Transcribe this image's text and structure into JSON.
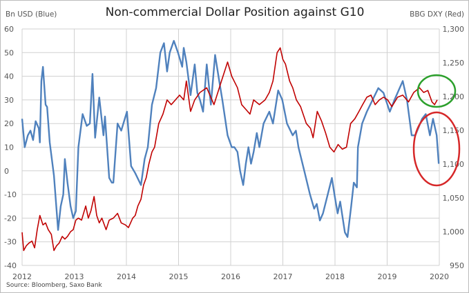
{
  "chart_data": {
    "type": "line",
    "title": "Non-commercial Dollar Position against G10",
    "ylabel_left": "Bn USD (Blue)",
    "ylabel_right": "BBG DXY (Red)",
    "source": "Source: Bloomberg, Saxo Bank",
    "xlim": [
      2012,
      2020
    ],
    "ylim_left": [
      -40,
      60
    ],
    "ylim_right": [
      950,
      1300
    ],
    "grid": true,
    "x_ticks": [
      "2012",
      "2013",
      "2014",
      "2015",
      "2016",
      "2017",
      "2018",
      "2019",
      "2020"
    ],
    "y_left_ticks": [
      "60",
      "50",
      "40",
      "30",
      "20",
      "10",
      "0",
      "-10",
      "-20",
      "-30",
      "-40"
    ],
    "y_right_ticks": [
      "1,300",
      "1,250",
      "1,200",
      "1,150",
      "1,100",
      "1,050",
      "1,000",
      "950"
    ],
    "annotations": [
      {
        "type": "circle",
        "color": "#2ca02c",
        "target": "BBG DXY, late 2019"
      },
      {
        "type": "circle",
        "color": "#d62728",
        "target": "Bn USD position, late 2019"
      }
    ],
    "series": [
      {
        "name": "Bn USD (Blue)",
        "axis": "left",
        "color": "#4f81bd",
        "x": [
          2012,
          2012.05,
          2012.11,
          2012.16,
          2012.21,
          2012.26,
          2012.32,
          2012.34,
          2012.37,
          2012.4,
          2012.45,
          2012.48,
          2012.53,
          2012.61,
          2012.69,
          2012.74,
          2012.79,
          2012.82,
          2012.87,
          2012.93,
          2012.98,
          2013.03,
          2013.08,
          2013.16,
          2013.24,
          2013.3,
          2013.35,
          2013.4,
          2013.48,
          2013.56,
          2013.59,
          2013.67,
          2013.72,
          2013.75,
          2013.83,
          2013.9,
          2014.01,
          2014.09,
          2014.17,
          2014.28,
          2014.35,
          2014.41,
          2014.49,
          2014.57,
          2014.65,
          2014.72,
          2014.78,
          2014.83,
          2014.91,
          2014.99,
          2015.07,
          2015.1,
          2015.15,
          2015.23,
          2015.31,
          2015.36,
          2015.41,
          2015.47,
          2015.54,
          2015.62,
          2015.7,
          2015.78,
          2015.84,
          2015.94,
          2016.02,
          2016.07,
          2016.13,
          2016.18,
          2016.24,
          2016.29,
          2016.34,
          2016.39,
          2016.44,
          2016.5,
          2016.55,
          2016.63,
          2016.74,
          2016.81,
          2016.91,
          2016.99,
          2017.08,
          2017.19,
          2017.25,
          2017.3,
          2017.41,
          2017.52,
          2017.6,
          2017.65,
          2017.71,
          2017.77,
          2017.94,
          2017.99,
          2018.05,
          2018.1,
          2018.19,
          2018.24,
          2018.31,
          2018.36,
          2018.42,
          2018.44,
          2018.52,
          2018.61,
          2018.72,
          2018.83,
          2018.93,
          2019.05,
          2019.14,
          2019.3,
          2019.38,
          2019.47,
          2019.54,
          2019.67,
          2019.74,
          2019.82,
          2019.88,
          2019.95,
          2019.99
        ],
        "y": [
          22,
          10,
          15,
          17,
          13,
          21,
          18,
          12,
          38,
          44,
          28,
          27,
          12,
          -2,
          -25,
          -15,
          -10,
          5,
          -5,
          -15,
          -20,
          -17,
          10,
          24,
          19,
          20,
          41,
          14,
          31,
          15,
          23,
          -3,
          -5,
          -5,
          20,
          17,
          25,
          2,
          -1,
          -6,
          5,
          10,
          28,
          35,
          50,
          54,
          42,
          50,
          55,
          50,
          44,
          52,
          46,
          32,
          45,
          33,
          30,
          25,
          45,
          28,
          49,
          38,
          30,
          15,
          10,
          10,
          8,
          0,
          -6,
          3,
          10,
          3,
          8,
          16,
          10,
          20,
          25,
          20,
          34,
          30,
          20,
          15,
          17,
          10,
          0,
          -10,
          -16,
          -14,
          -21,
          -18,
          -3,
          -10,
          -18,
          -13,
          -26,
          -28,
          -15,
          -5,
          -7,
          10,
          20,
          25,
          30,
          35,
          33,
          25,
          30,
          38,
          30,
          15,
          15,
          22,
          24,
          15,
          22,
          15,
          3
        ]
      },
      {
        "name": "BBG DXY (Red)",
        "axis": "right",
        "color": "#c00000",
        "x": [
          2012,
          2012.03,
          2012.08,
          2012.13,
          2012.19,
          2012.24,
          2012.29,
          2012.34,
          2012.4,
          2012.45,
          2012.5,
          2012.56,
          2012.61,
          2012.66,
          2012.71,
          2012.77,
          2012.82,
          2012.87,
          2012.93,
          2012.98,
          2013.03,
          2013.08,
          2013.14,
          2013.22,
          2013.27,
          2013.32,
          2013.38,
          2013.43,
          2013.48,
          2013.53,
          2013.61,
          2013.67,
          2013.75,
          2013.83,
          2013.9,
          2013.98,
          2014.04,
          2014.12,
          2014.17,
          2014.22,
          2014.28,
          2014.33,
          2014.38,
          2014.43,
          2014.49,
          2014.54,
          2014.62,
          2014.7,
          2014.78,
          2014.86,
          2014.94,
          2015.02,
          2015.1,
          2015.15,
          2015.23,
          2015.31,
          2015.41,
          2015.54,
          2015.68,
          2015.81,
          2015.94,
          2016.02,
          2016.13,
          2016.21,
          2016.29,
          2016.37,
          2016.44,
          2016.55,
          2016.66,
          2016.74,
          2016.81,
          2016.89,
          2016.95,
          2017,
          2017.05,
          2017.13,
          2017.19,
          2017.26,
          2017.34,
          2017.45,
          2017.53,
          2017.58,
          2017.66,
          2017.74,
          2017.82,
          2017.9,
          2017.98,
          2018.06,
          2018.14,
          2018.22,
          2018.3,
          2018.38,
          2018.46,
          2018.53,
          2018.61,
          2018.69,
          2018.77,
          2018.85,
          2018.93,
          2019.01,
          2019.09,
          2019.2,
          2019.3,
          2019.41,
          2019.51,
          2019.62,
          2019.7,
          2019.78,
          2019.86,
          2019.91,
          2019.96
        ],
        "y": [
          999,
          972,
          979,
          983,
          986,
          976,
          1003,
          1024,
          1010,
          1013,
          1003,
          996,
          972,
          979,
          983,
          993,
          989,
          993,
          1000,
          1003,
          1017,
          1020,
          1017,
          1038,
          1020,
          1031,
          1052,
          1024,
          1013,
          1020,
          1003,
          1017,
          1020,
          1027,
          1013,
          1010,
          1006,
          1020,
          1024,
          1038,
          1048,
          1069,
          1080,
          1100,
          1118,
          1125,
          1160,
          1174,
          1195,
          1188,
          1195,
          1202,
          1195,
          1223,
          1178,
          1195,
          1206,
          1213,
          1188,
          1220,
          1251,
          1230,
          1213,
          1188,
          1181,
          1174,
          1195,
          1188,
          1195,
          1206,
          1223,
          1265,
          1272,
          1255,
          1248,
          1223,
          1213,
          1195,
          1185,
          1160,
          1153,
          1139,
          1178,
          1164,
          1146,
          1125,
          1118,
          1129,
          1122,
          1125,
          1160,
          1167,
          1178,
          1188,
          1199,
          1202,
          1188,
          1195,
          1199,
          1195,
          1185,
          1199,
          1202,
          1192,
          1206,
          1213,
          1206,
          1209,
          1192,
          1188,
          1195
        ]
      }
    ]
  }
}
